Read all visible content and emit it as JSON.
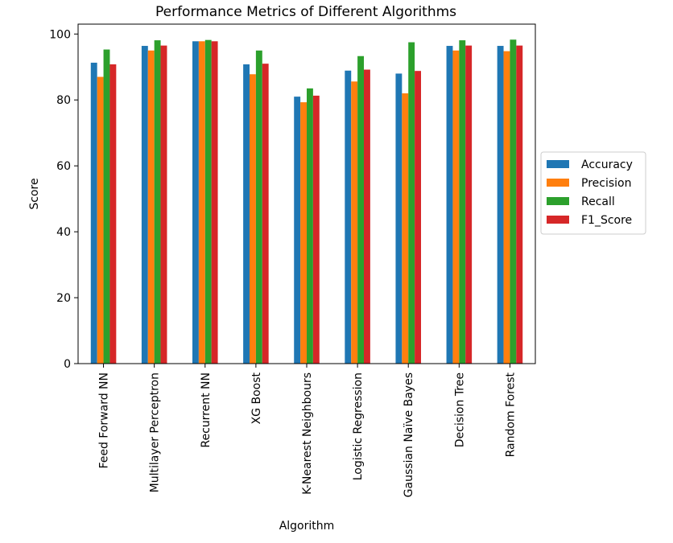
{
  "chart_data": {
    "type": "bar",
    "title": "Performance Metrics of Different Algorithms",
    "xlabel": "Algorithm",
    "ylabel": "Score",
    "ylim": [
      0,
      103
    ],
    "yticks": [
      0,
      20,
      40,
      60,
      80,
      100
    ],
    "grid": false,
    "legend_position": "center-right-outside",
    "categories": [
      "Feed Forward NN",
      "Multilayer Perceptron",
      "Recurrent NN",
      "XG Boost",
      "K-Nearest Neighbours",
      "Logistic Regression",
      "Gaussian Naïve Bayes",
      "Decision Tree",
      "Random Forest"
    ],
    "series": [
      {
        "name": "Accuracy",
        "color": "#1f77b4",
        "values": [
          91.3,
          96.4,
          97.8,
          90.8,
          81.0,
          88.9,
          88.0,
          96.4,
          96.4
        ]
      },
      {
        "name": "Precision",
        "color": "#ff7f0e",
        "values": [
          87.0,
          95.0,
          97.8,
          87.8,
          79.3,
          85.6,
          82.0,
          95.0,
          94.8
        ]
      },
      {
        "name": "Recall",
        "color": "#2ca02c",
        "values": [
          95.3,
          98.1,
          98.2,
          95.0,
          83.5,
          93.3,
          97.5,
          98.1,
          98.3
        ]
      },
      {
        "name": "F1_Score",
        "color": "#d62728",
        "values": [
          90.8,
          96.5,
          97.8,
          91.0,
          81.3,
          89.2,
          88.8,
          96.5,
          96.5
        ]
      }
    ]
  }
}
